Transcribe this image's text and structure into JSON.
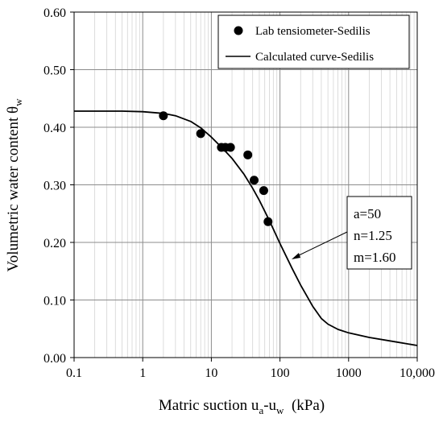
{
  "chart_data": {
    "type": "scatter",
    "xscale": "log",
    "xlim": [
      0.1,
      10000
    ],
    "ylim": [
      0.0,
      0.6
    ],
    "x_ticks": [
      0.1,
      1,
      10,
      100,
      1000,
      10000
    ],
    "x_tick_labels": [
      "0.1",
      "1",
      "10",
      "100",
      "1000",
      "10,000"
    ],
    "y_ticks": [
      0.0,
      0.1,
      0.2,
      0.3,
      0.4,
      0.5,
      0.6
    ],
    "y_tick_labels": [
      "0.00",
      "0.10",
      "0.20",
      "0.30",
      "0.40",
      "0.50",
      "0.60"
    ],
    "xlabel": {
      "main": "Matric suction u",
      "sub1": "a",
      "mid": "-u",
      "sub2": "w",
      "tail": "  (kPa)"
    },
    "ylabel": {
      "main": "Volumetric water content θ",
      "sub": "w"
    },
    "grid": true,
    "legend_position": "top-right",
    "series": [
      {
        "name": "Lab tensiometer-Sedilis",
        "kind": "points",
        "color": "#000000",
        "x": [
          2,
          7,
          14,
          16,
          19,
          34,
          42,
          58,
          67
        ],
        "y": [
          0.42,
          0.389,
          0.365,
          0.365,
          0.365,
          0.352,
          0.308,
          0.29,
          0.236
        ]
      },
      {
        "name": "Calculated curve-Sedilis",
        "kind": "line",
        "color": "#000000",
        "x": [
          0.1,
          0.5,
          1,
          2,
          3,
          5,
          7,
          10,
          15,
          20,
          30,
          40,
          50,
          70,
          100,
          150,
          200,
          300,
          400,
          500,
          700,
          1000,
          2000,
          5000,
          10000
        ],
        "y": [
          0.428,
          0.428,
          0.427,
          0.424,
          0.42,
          0.41,
          0.399,
          0.383,
          0.362,
          0.346,
          0.318,
          0.294,
          0.273,
          0.238,
          0.198,
          0.155,
          0.126,
          0.089,
          0.068,
          0.058,
          0.049,
          0.043,
          0.035,
          0.027,
          0.021
        ]
      }
    ],
    "annotation": {
      "lines": [
        "a=50",
        "n=1.25",
        "m=1.60"
      ]
    }
  }
}
